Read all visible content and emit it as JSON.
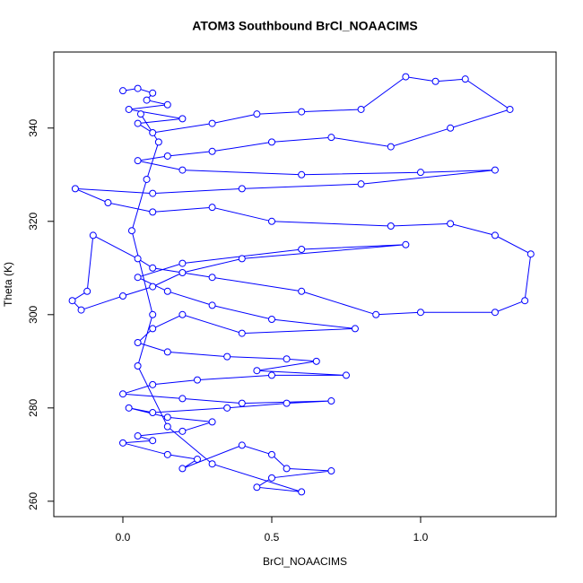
{
  "chart_data": {
    "type": "line",
    "title": "ATOM3 Southbound BrCl_NOAACIMS",
    "x_label": "BrCl_NOAACIMS",
    "y_label": "Theta (K)",
    "xlim": [
      -0.232,
      1.455
    ],
    "ylim": [
      256.7,
      356.3
    ],
    "xticks": [
      {
        "value": 0,
        "label": "0.0"
      },
      {
        "value": 0.5,
        "label": "0.5"
      },
      {
        "value": 1,
        "label": "1.0"
      }
    ],
    "yticks": [
      260,
      280,
      300,
      320,
      340
    ],
    "grid": false,
    "markers": true,
    "series": [
      {
        "name": "BrCl_NOAACIMS",
        "color": "#0000ff",
        "x": [
          0.0,
          0.05,
          0.1,
          0.08,
          0.15,
          0.02,
          0.2,
          0.05,
          0.1,
          0.3,
          0.45,
          0.6,
          0.8,
          0.95,
          1.05,
          1.15,
          1.3,
          1.1,
          0.9,
          0.7,
          0.5,
          0.3,
          0.15,
          0.05,
          0.2,
          0.6,
          1.0,
          1.25,
          0.8,
          0.4,
          0.1,
          -0.16,
          -0.05,
          0.1,
          0.3,
          0.5,
          0.9,
          1.1,
          1.25,
          1.37,
          1.35,
          1.25,
          1.0,
          0.85,
          0.6,
          0.3,
          0.1,
          0.05,
          -0.1,
          -0.12,
          -0.17,
          -0.14,
          0.0,
          0.1,
          0.2,
          0.4,
          0.95,
          0.6,
          0.2,
          0.05,
          0.15,
          0.3,
          0.5,
          0.78,
          0.4,
          0.2,
          0.1,
          0.05,
          0.15,
          0.35,
          0.55,
          0.65,
          0.45,
          0.75,
          0.5,
          0.25,
          0.1,
          0.0,
          0.2,
          0.4,
          0.7,
          0.55,
          0.35,
          0.1,
          0.02,
          0.15,
          0.3,
          0.2,
          0.05,
          0.1,
          0.0,
          0.15,
          0.25,
          0.2,
          0.4,
          0.5,
          0.55,
          0.7,
          0.5,
          0.45,
          0.6,
          0.3,
          0.15,
          0.05,
          0.1,
          0.03,
          0.08,
          0.12,
          0.06
        ],
        "values": [
          348,
          348.5,
          347.5,
          346,
          345,
          344,
          342,
          341,
          339,
          341,
          343,
          343.5,
          344,
          351,
          350,
          350.5,
          344,
          340,
          336,
          338,
          337,
          335,
          334,
          333,
          331,
          330,
          330.5,
          331,
          328,
          327,
          326,
          327,
          324,
          322,
          323,
          320,
          319,
          319.5,
          317,
          313,
          303,
          300.5,
          300.5,
          300,
          305,
          308,
          310,
          312,
          317,
          305,
          303,
          301,
          304,
          306,
          309,
          312,
          315,
          314,
          311,
          308,
          305,
          302,
          299,
          297,
          296,
          300,
          297,
          294,
          292,
          291,
          290.5,
          290,
          288,
          287,
          287,
          286,
          285,
          283,
          282,
          281,
          281.5,
          281,
          280,
          279,
          280,
          278,
          277,
          275,
          274,
          273,
          272.5,
          270,
          269,
          267,
          272,
          270,
          267,
          266.5,
          265,
          263,
          262,
          268,
          276,
          289,
          300,
          318,
          329,
          337,
          343
        ]
      }
    ]
  }
}
